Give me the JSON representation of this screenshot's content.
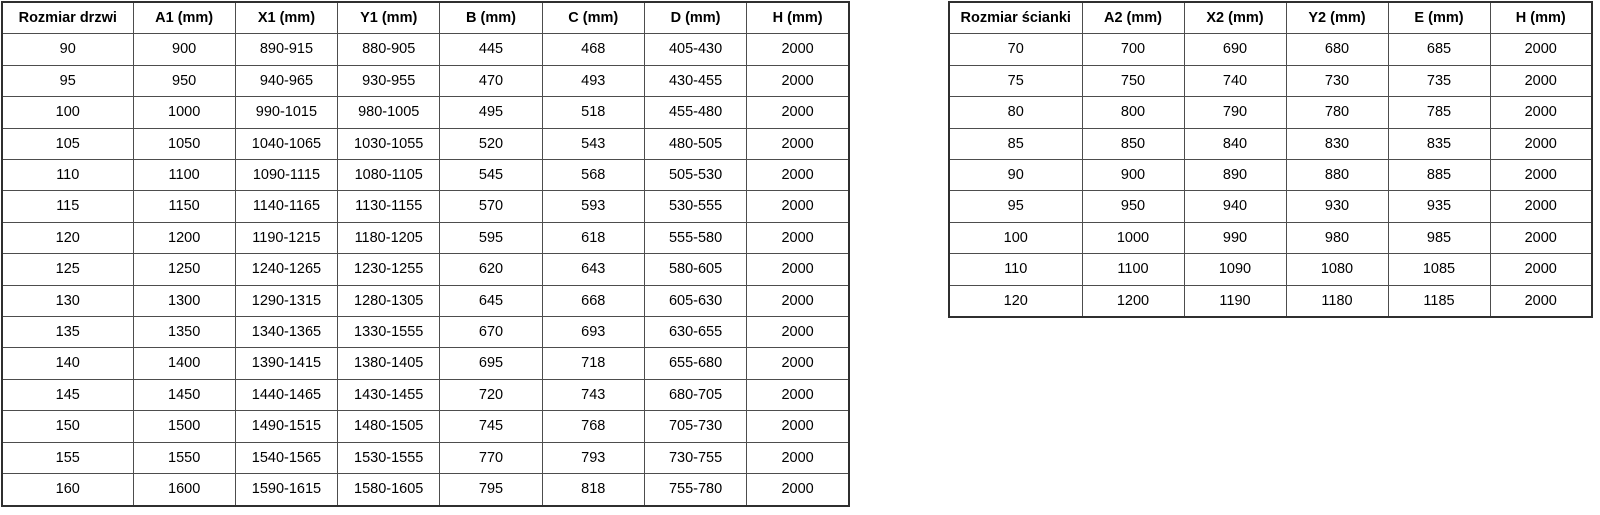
{
  "colors": {
    "background": "#ffffff",
    "border_outer": "#2f2f2f",
    "border_inner": "#4d4d4d",
    "text": "#000000"
  },
  "left_table": {
    "title": "door-size-table",
    "headers": [
      "Rozmiar drzwi",
      "A1 (mm)",
      "X1 (mm)",
      "Y1 (mm)",
      "B (mm)",
      "C (mm)",
      "D (mm)",
      "H (mm)"
    ],
    "rows": [
      [
        "90",
        "900",
        "890-915",
        "880-905",
        "445",
        "468",
        "405-430",
        "2000"
      ],
      [
        "95",
        "950",
        "940-965",
        "930-955",
        "470",
        "493",
        "430-455",
        "2000"
      ],
      [
        "100",
        "1000",
        "990-1015",
        "980-1005",
        "495",
        "518",
        "455-480",
        "2000"
      ],
      [
        "105",
        "1050",
        "1040-1065",
        "1030-1055",
        "520",
        "543",
        "480-505",
        "2000"
      ],
      [
        "110",
        "1100",
        "1090-1115",
        "1080-1105",
        "545",
        "568",
        "505-530",
        "2000"
      ],
      [
        "115",
        "1150",
        "1140-1165",
        "1130-1155",
        "570",
        "593",
        "530-555",
        "2000"
      ],
      [
        "120",
        "1200",
        "1190-1215",
        "1180-1205",
        "595",
        "618",
        "555-580",
        "2000"
      ],
      [
        "125",
        "1250",
        "1240-1265",
        "1230-1255",
        "620",
        "643",
        "580-605",
        "2000"
      ],
      [
        "130",
        "1300",
        "1290-1315",
        "1280-1305",
        "645",
        "668",
        "605-630",
        "2000"
      ],
      [
        "135",
        "1350",
        "1340-1365",
        "1330-1555",
        "670",
        "693",
        "630-655",
        "2000"
      ],
      [
        "140",
        "1400",
        "1390-1415",
        "1380-1405",
        "695",
        "718",
        "655-680",
        "2000"
      ],
      [
        "145",
        "1450",
        "1440-1465",
        "1430-1455",
        "720",
        "743",
        "680-705",
        "2000"
      ],
      [
        "150",
        "1500",
        "1490-1515",
        "1480-1505",
        "745",
        "768",
        "705-730",
        "2000"
      ],
      [
        "155",
        "1550",
        "1540-1565",
        "1530-1555",
        "770",
        "793",
        "730-755",
        "2000"
      ],
      [
        "160",
        "1600",
        "1590-1615",
        "1580-1605",
        "795",
        "818",
        "755-780",
        "2000"
      ]
    ]
  },
  "right_table": {
    "title": "wall-panel-size-table",
    "headers": [
      "Rozmiar ścianki",
      "A2 (mm)",
      "X2 (mm)",
      "Y2 (mm)",
      "E (mm)",
      "H (mm)"
    ],
    "rows": [
      [
        "70",
        "700",
        "690",
        "680",
        "685",
        "2000"
      ],
      [
        "75",
        "750",
        "740",
        "730",
        "735",
        "2000"
      ],
      [
        "80",
        "800",
        "790",
        "780",
        "785",
        "2000"
      ],
      [
        "85",
        "850",
        "840",
        "830",
        "835",
        "2000"
      ],
      [
        "90",
        "900",
        "890",
        "880",
        "885",
        "2000"
      ],
      [
        "95",
        "950",
        "940",
        "930",
        "935",
        "2000"
      ],
      [
        "100",
        "1000",
        "990",
        "980",
        "985",
        "2000"
      ],
      [
        "110",
        "1100",
        "1090",
        "1080",
        "1085",
        "2000"
      ],
      [
        "120",
        "1200",
        "1190",
        "1180",
        "1185",
        "2000"
      ]
    ]
  }
}
